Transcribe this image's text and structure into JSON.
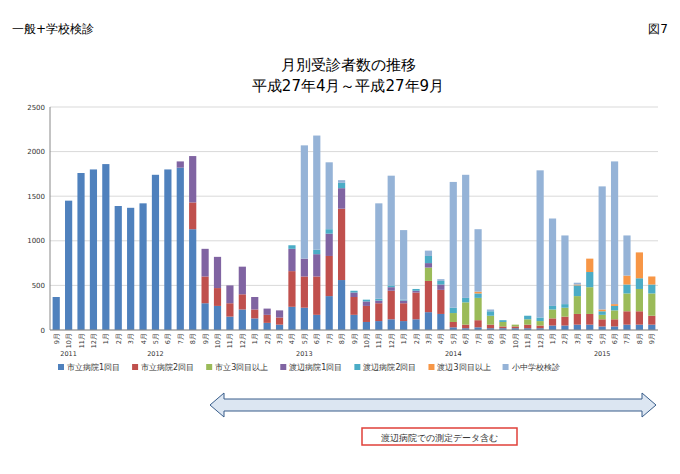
{
  "chart_data": {
    "type": "bar",
    "title": "月別受診者数の推移",
    "subtitle": "平成27年4月～平成27年9月",
    "annotations": [
      "一般+学校検診",
      "図7",
      "渡辺病院での測定データ含む"
    ],
    "categories": [
      "9月",
      "10月",
      "11月",
      "12月",
      "1月",
      "2月",
      "3月",
      "4月",
      "5月",
      "6月",
      "7月",
      "8月",
      "9月",
      "10月",
      "11月",
      "12月",
      "1月",
      "2月",
      "3月",
      "4月",
      "5月",
      "6月",
      "7月",
      "8月",
      "9月",
      "10月",
      "11月",
      "12月",
      "1月",
      "2月",
      "3月",
      "4月",
      "5月",
      "6月",
      "7月",
      "8月",
      "9月",
      "10月",
      "11月",
      "12月",
      "1月",
      "2月",
      "3月",
      "4月",
      "5月",
      "6月",
      "7月",
      "8月",
      "9月"
    ],
    "year_labels": [
      null,
      "2011",
      null,
      null,
      null,
      null,
      null,
      null,
      "2012",
      null,
      null,
      null,
      null,
      null,
      null,
      null,
      null,
      null,
      null,
      null,
      "2013",
      null,
      null,
      null,
      null,
      null,
      null,
      null,
      null,
      null,
      null,
      null,
      "2014",
      null,
      null,
      null,
      null,
      null,
      null,
      null,
      null,
      null,
      null,
      null,
      "2015",
      null,
      null,
      null,
      null
    ],
    "series": [
      {
        "name": "市立病院1回目",
        "color": "#4f81bd",
        "values": [
          370,
          1450,
          1760,
          1800,
          1860,
          1390,
          1370,
          1420,
          1740,
          1800,
          1820,
          1130,
          300,
          270,
          150,
          230,
          130,
          80,
          60,
          260,
          250,
          170,
          380,
          560,
          170,
          90,
          100,
          120,
          100,
          120,
          200,
          180,
          30,
          20,
          30,
          20,
          20,
          20,
          20,
          20,
          50,
          50,
          60,
          60,
          40,
          40,
          60,
          60,
          60
        ]
      },
      {
        "name": "市立病院2回目",
        "color": "#c0504d",
        "values": [
          0,
          0,
          0,
          0,
          0,
          0,
          0,
          0,
          0,
          0,
          0,
          300,
          300,
          200,
          150,
          170,
          100,
          90,
          80,
          400,
          350,
          430,
          450,
          800,
          200,
          180,
          200,
          320,
          200,
          300,
          350,
          270,
          60,
          40,
          80,
          40,
          20,
          20,
          40,
          30,
          80,
          100,
          120,
          120,
          80,
          80,
          150,
          150,
          100
        ]
      },
      {
        "name": "市立3回目以上",
        "color": "#9bbb59",
        "values": [
          0,
          0,
          0,
          0,
          0,
          0,
          0,
          0,
          0,
          0,
          0,
          0,
          0,
          0,
          0,
          0,
          0,
          0,
          0,
          0,
          0,
          0,
          0,
          0,
          0,
          0,
          0,
          0,
          0,
          0,
          150,
          0,
          100,
          250,
          250,
          100,
          50,
          20,
          60,
          50,
          100,
          100,
          200,
          300,
          50,
          100,
          200,
          250,
          250
        ]
      },
      {
        "name": "渡辺病院1回目",
        "color": "#8064a2",
        "values": [
          0,
          0,
          0,
          0,
          0,
          0,
          0,
          0,
          0,
          0,
          70,
          520,
          310,
          350,
          200,
          310,
          140,
          70,
          80,
          250,
          200,
          250,
          250,
          230,
          50,
          50,
          30,
          40,
          30,
          20,
          50,
          60,
          0,
          0,
          0,
          0,
          0,
          0,
          0,
          0,
          0,
          0,
          0,
          0,
          0,
          0,
          0,
          0,
          0
        ]
      },
      {
        "name": "渡辺病院2回目",
        "color": "#4bacc6",
        "values": [
          0,
          0,
          0,
          0,
          0,
          0,
          0,
          0,
          0,
          0,
          0,
          0,
          0,
          0,
          0,
          0,
          0,
          0,
          0,
          40,
          0,
          50,
          50,
          60,
          20,
          20,
          20,
          20,
          10,
          20,
          80,
          40,
          60,
          50,
          50,
          50,
          20,
          0,
          40,
          40,
          40,
          40,
          120,
          170,
          40,
          50,
          100,
          120,
          100
        ]
      },
      {
        "name": "渡辺3回目以上",
        "color": "#f79646",
        "values": [
          0,
          0,
          0,
          0,
          0,
          0,
          0,
          0,
          0,
          0,
          0,
          0,
          0,
          0,
          0,
          0,
          0,
          0,
          0,
          0,
          0,
          0,
          0,
          0,
          0,
          0,
          0,
          0,
          0,
          0,
          0,
          0,
          0,
          0,
          20,
          0,
          0,
          0,
          0,
          0,
          0,
          0,
          10,
          150,
          20,
          20,
          100,
          290,
          90
        ]
      },
      {
        "name": "小中学校検診",
        "color": "#95b3d7",
        "values": [
          0,
          0,
          0,
          0,
          0,
          0,
          0,
          0,
          0,
          0,
          0,
          0,
          0,
          0,
          0,
          0,
          0,
          0,
          0,
          0,
          1270,
          1280,
          750,
          30,
          0,
          0,
          1070,
          1230,
          780,
          0,
          60,
          20,
          1410,
          1380,
          700,
          20,
          0,
          0,
          0,
          1650,
          980,
          770,
          20,
          0,
          1380,
          1600,
          450,
          0,
          0
        ]
      }
    ],
    "ylim": [
      0,
      2500
    ],
    "yticks": [
      0,
      500,
      1000,
      1500,
      2000,
      2500
    ],
    "stacked": true,
    "grid": true,
    "legend": "bottom"
  }
}
